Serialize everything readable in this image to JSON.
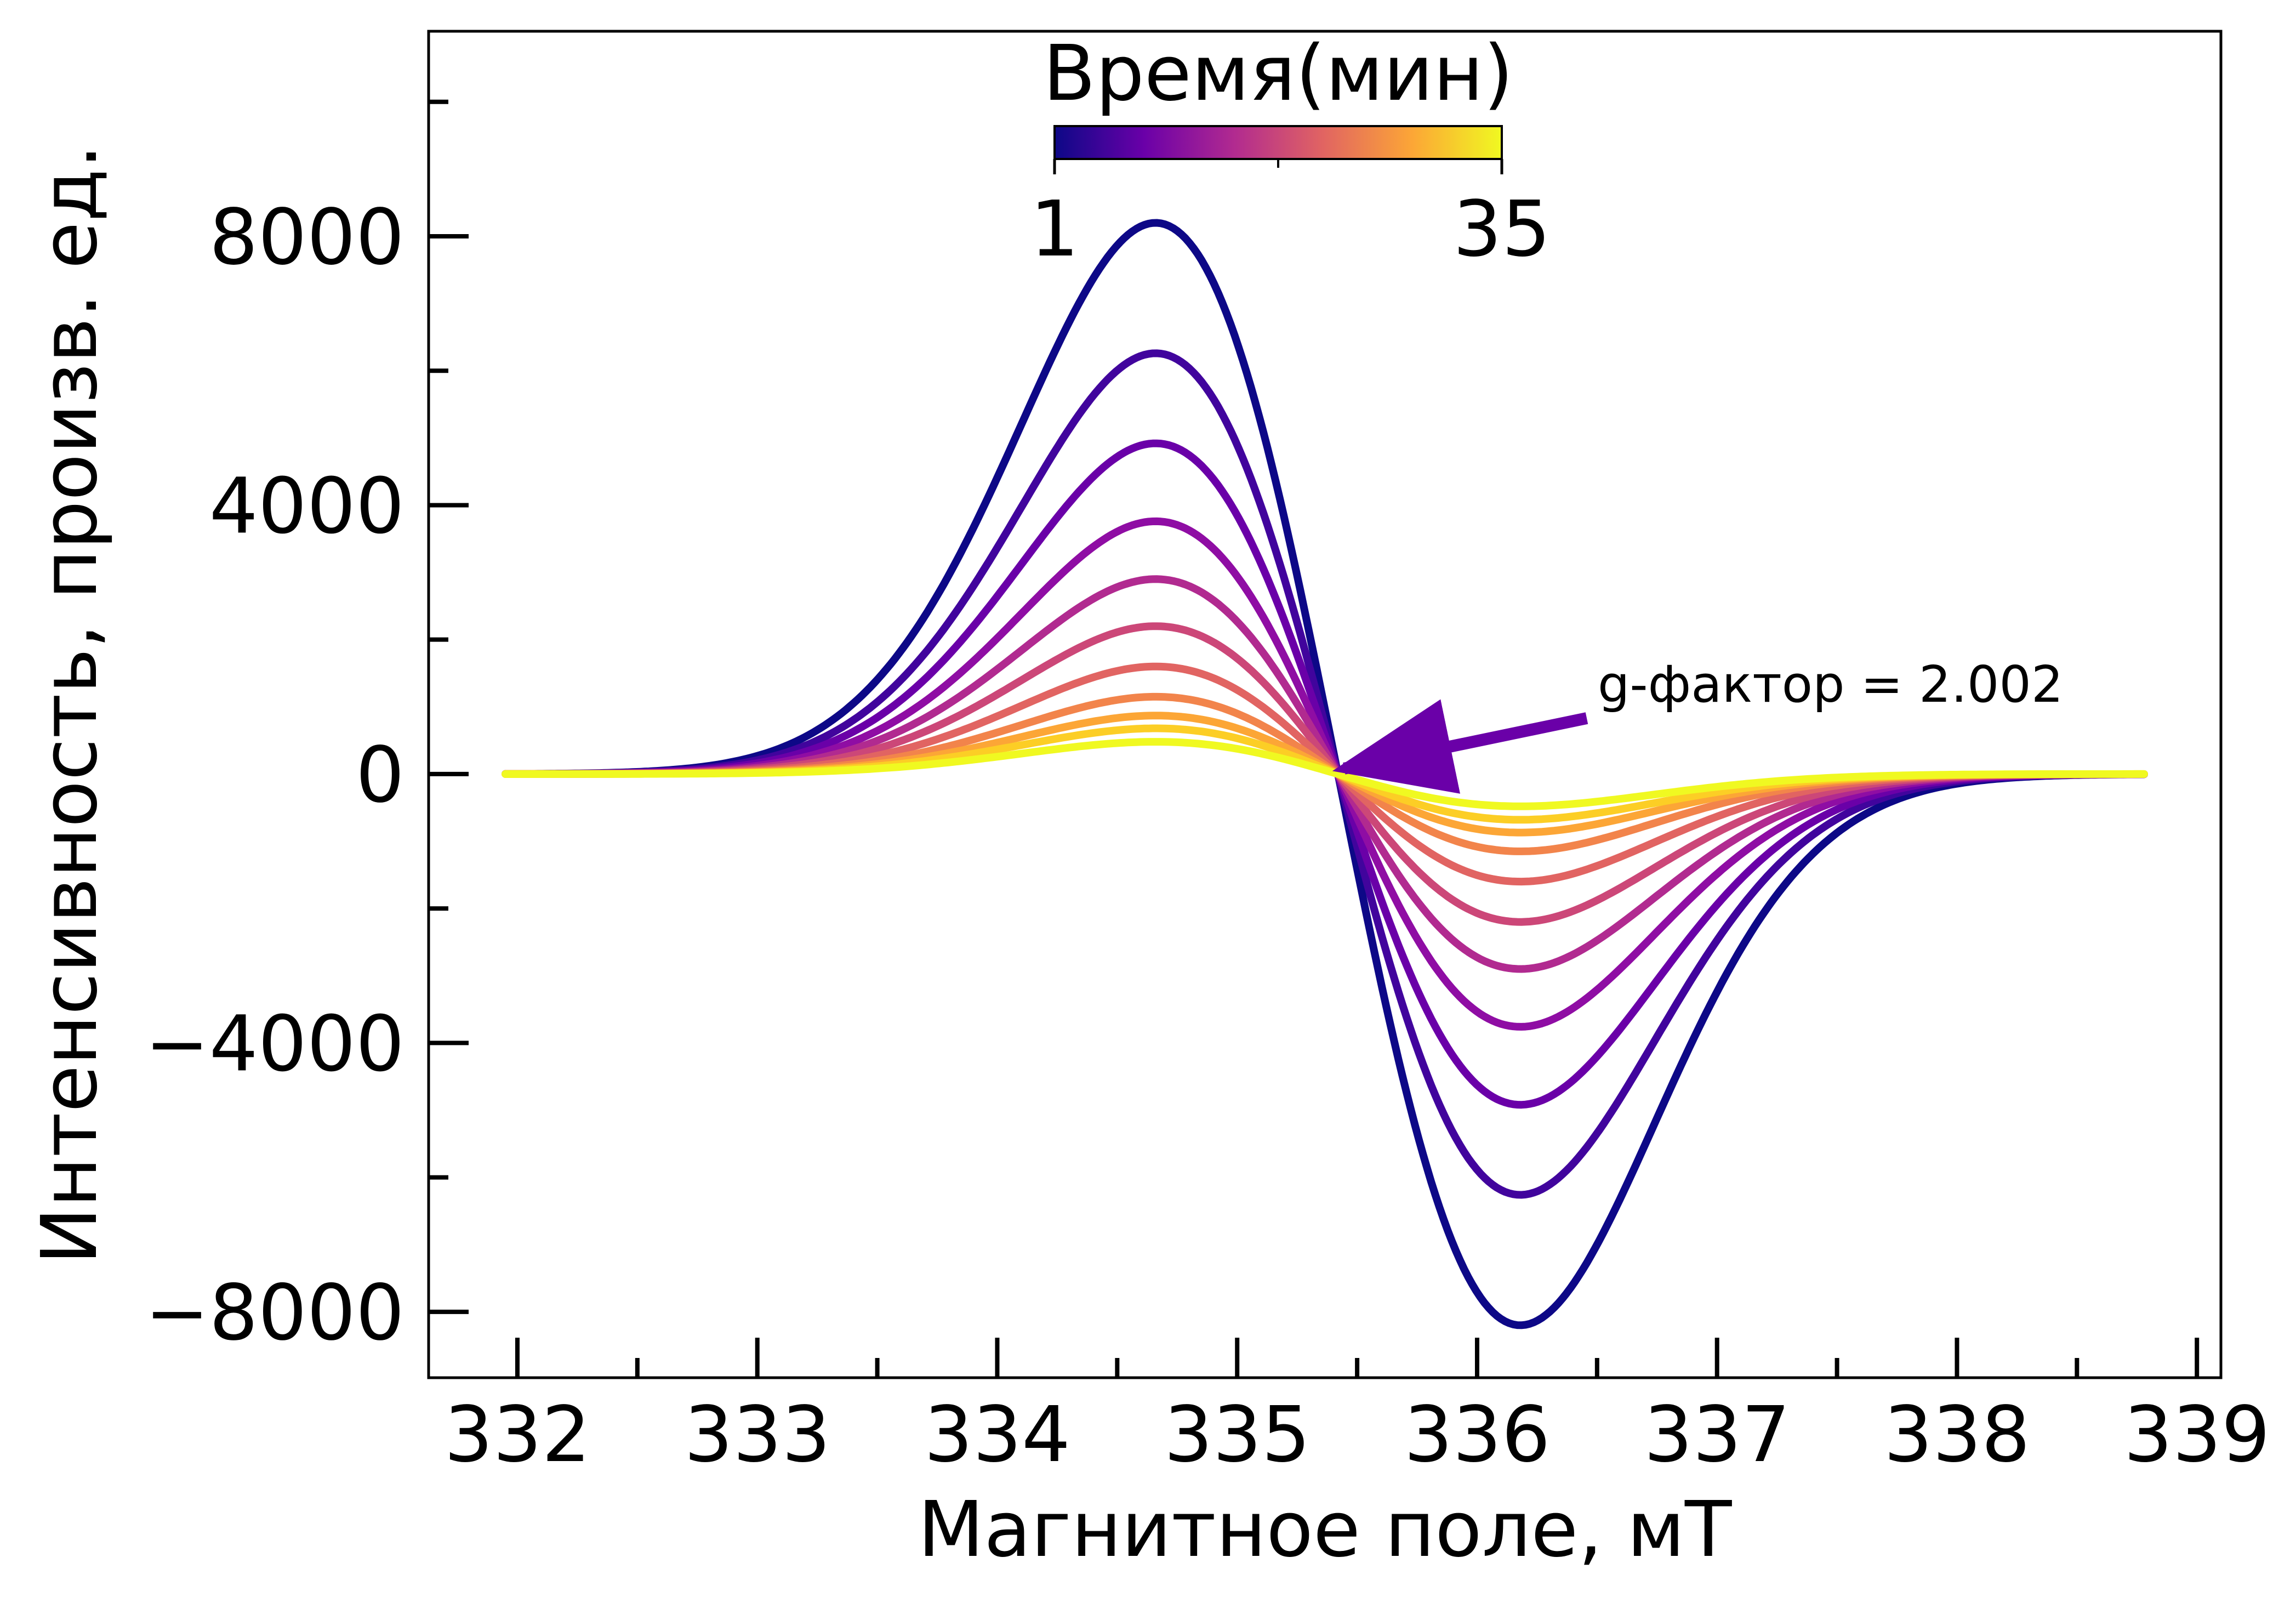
{
  "chart_data": {
    "type": "line",
    "xlabel": "Магнитное поле, мТ",
    "ylabel": "Интенсивность, произв. ед.",
    "xlim": [
      331.63,
      339.1
    ],
    "ylim": [
      -8980,
      11050
    ],
    "x_ticks": [
      332,
      333,
      334,
      335,
      336,
      337,
      338,
      339
    ],
    "x_tick_labels": [
      "332",
      "333",
      "334",
      "335",
      "336",
      "337",
      "338",
      "339"
    ],
    "x_minor_ticks": [
      332.5,
      333.5,
      334.5,
      335.5,
      336.5,
      337.5,
      338.5
    ],
    "y_ticks": [
      -8000,
      -4000,
      0,
      4000,
      8000
    ],
    "y_tick_labels": [
      "−8000",
      "−4000",
      "0",
      "4000",
      "8000"
    ],
    "y_minor_ticks": [
      -6000,
      -2000,
      2000,
      6000,
      10000
    ],
    "grid": false,
    "field_range": [
      331.95,
      338.78
    ],
    "line_center": 335.42,
    "peak_positions": [
      334.68,
      336.2
    ],
    "series": [
      {
        "time_min": 1,
        "peak": 8200,
        "color": "#0d0887"
      },
      {
        "time_min": 4.4,
        "peak": 6260,
        "color": "#41049d"
      },
      {
        "time_min": 7.8,
        "peak": 4920,
        "color": "#6a00a8"
      },
      {
        "time_min": 11.2,
        "peak": 3760,
        "color": "#8f0da4"
      },
      {
        "time_min": 14.6,
        "peak": 2900,
        "color": "#b12a90"
      },
      {
        "time_min": 18,
        "peak": 2200,
        "color": "#cc4778"
      },
      {
        "time_min": 21.4,
        "peak": 1600,
        "color": "#e16462"
      },
      {
        "time_min": 24.8,
        "peak": 1150,
        "color": "#f2844b"
      },
      {
        "time_min": 28.2,
        "peak": 870,
        "color": "#fca636"
      },
      {
        "time_min": 31.6,
        "peak": 680,
        "color": "#fcce25"
      },
      {
        "time_min": 35,
        "peak": 480,
        "color": "#f0f921"
      }
    ],
    "colorbar": {
      "title": "Время(мин)",
      "min_label": "1",
      "max_label": "35",
      "min": 1,
      "max": 35,
      "colors": [
        "#0d0887",
        "#6a00a8",
        "#b12a90",
        "#e16462",
        "#fca636",
        "#f0f921"
      ]
    },
    "annotation": {
      "text": "g-фактор = 2.002",
      "point_x": 335.4,
      "point_y": 0,
      "arrow_color": "#6a00a8"
    }
  }
}
